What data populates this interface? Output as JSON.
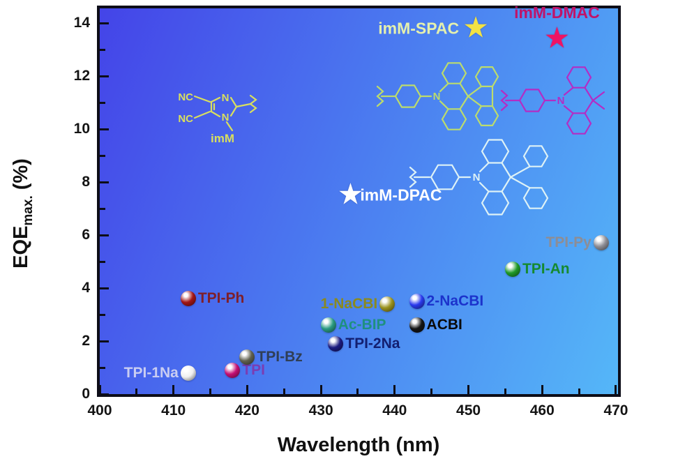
{
  "figure": {
    "background_color": "#ffffff",
    "plot_gradient_start": "#4444e8",
    "plot_gradient_end": "#55b7f8",
    "x_axis": {
      "title": "Wavelength (nm)",
      "major_ticks": [
        400,
        410,
        420,
        430,
        440,
        450,
        460,
        470
      ],
      "minor_ticks": [
        405,
        415,
        425,
        435,
        445,
        455,
        465
      ]
    },
    "y_axis": {
      "title_main": "EQE",
      "title_sub": "max.",
      "title_unit": "(%)",
      "major_ticks": [
        0,
        2,
        4,
        6,
        8,
        10,
        12,
        14
      ],
      "minor_ticks": [
        1,
        3,
        5,
        7,
        9,
        11,
        13
      ]
    }
  },
  "chart_data": {
    "type": "scatter",
    "title": "",
    "xlabel": "Wavelength (nm)",
    "ylabel": "EQE_max. (%)",
    "xlim": [
      400,
      470
    ],
    "ylim": [
      0,
      14
    ],
    "legend": "none",
    "points": [
      {
        "name": "TPI-1Na",
        "x": 412,
        "y": 0.8,
        "marker": "sphere",
        "color": "#f0f0f0",
        "label_color": "#c9cdf2",
        "label_side": "left"
      },
      {
        "name": "TPI",
        "x": 418,
        "y": 0.9,
        "marker": "sphere",
        "color": "#c40f74",
        "label_color": "#7b3db2",
        "label_side": "right"
      },
      {
        "name": "TPI-Bz",
        "x": 420,
        "y": 1.4,
        "marker": "sphere",
        "color": "#61614f",
        "label_color": "#2f3e55",
        "label_side": "right"
      },
      {
        "name": "TPI-Ph",
        "x": 412,
        "y": 3.6,
        "marker": "sphere",
        "color": "#a31616",
        "label_color": "#7e1f2a",
        "label_side": "right"
      },
      {
        "name": "TPI-2Na",
        "x": 432,
        "y": 1.9,
        "marker": "sphere",
        "color": "#1b1b80",
        "label_color": "#131f70",
        "label_side": "right"
      },
      {
        "name": "Ac-BIP",
        "x": 431,
        "y": 2.6,
        "marker": "sphere",
        "color": "#2a9a82",
        "label_color": "#1f9080",
        "label_side": "right"
      },
      {
        "name": "1-NaCBI",
        "x": 439,
        "y": 3.4,
        "marker": "sphere",
        "color": "#9a921e",
        "label_color": "#8a8a20",
        "label_side": "left"
      },
      {
        "name": "2-NaCBI",
        "x": 443,
        "y": 3.5,
        "marker": "sphere",
        "color": "#2a3aee",
        "label_color": "#1c33cc",
        "label_side": "right"
      },
      {
        "name": "ACBI",
        "x": 443,
        "y": 2.6,
        "marker": "sphere",
        "color": "#141414",
        "label_color": "#0a0a0a",
        "label_side": "right"
      },
      {
        "name": "TPI-An",
        "x": 456,
        "y": 4.7,
        "marker": "sphere",
        "color": "#1f9a28",
        "label_color": "#168a30",
        "label_side": "right"
      },
      {
        "name": "TPI-Py",
        "x": 468,
        "y": 5.7,
        "marker": "sphere",
        "color": "#8e8e96",
        "label_color": "#8d8d95",
        "label_side": "left"
      },
      {
        "name": "imM-SPAC",
        "x": 451,
        "y": 13.8,
        "marker": "star",
        "color": "#f2e243",
        "label_color": "#e4f0ae",
        "label_side": "left"
      },
      {
        "name": "imM-DMAC",
        "x": 462,
        "y": 13.4,
        "marker": "star",
        "color": "#ee1464",
        "label_color": "#c01368",
        "label_side": "above"
      },
      {
        "name": "imM-DPAC",
        "x": 434,
        "y": 7.5,
        "marker": "star",
        "color": "#ffffff",
        "label_color": "#ffffff",
        "label_side": "right"
      }
    ]
  },
  "structures": {
    "imM": {
      "color": "#d9df5e",
      "cyano_top": "NC",
      "cyano_bottom": "NC",
      "n_top": "N",
      "n_bottom": "N",
      "caption": "imM"
    },
    "spac": {
      "color": "#bcdc6c",
      "n": "N"
    },
    "dmac": {
      "color": "#b42cc4",
      "n": "N"
    },
    "dpac": {
      "color": "#def2f6",
      "n": "N"
    }
  }
}
